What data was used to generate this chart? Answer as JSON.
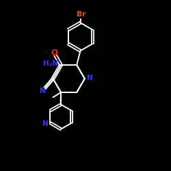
{
  "bg_color": "#000000",
  "bond_color": "#ffffff",
  "N_color": "#3333ff",
  "O_color": "#ff2200",
  "Br_color": "#ff4400",
  "label_N": "N",
  "label_NH2": "H₂N",
  "label_O": "O",
  "label_Br": "Br",
  "figsize": [
    2.5,
    2.5
  ],
  "dpi": 100
}
